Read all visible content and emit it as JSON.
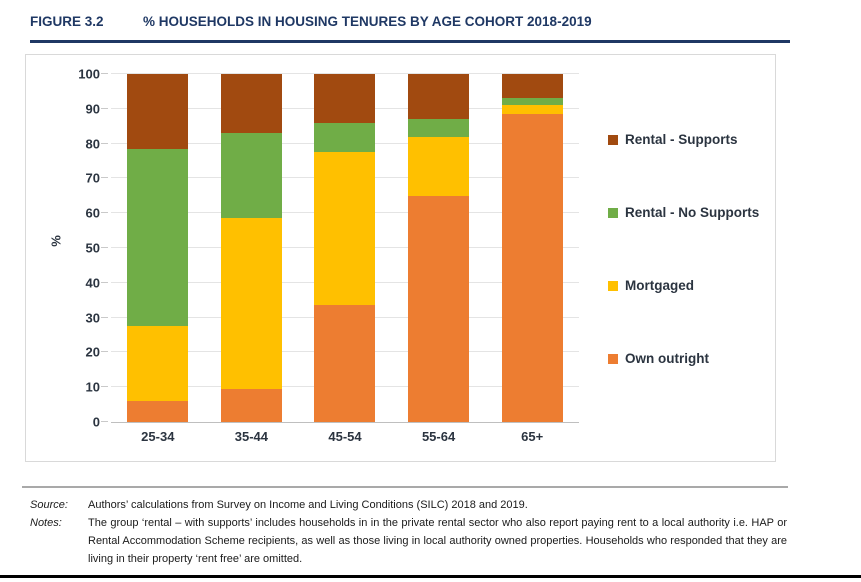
{
  "header": {
    "figure_label": "FIGURE 3.2",
    "title": "% HOUSEHOLDS IN HOUSING TENURES BY AGE COHORT 2018-2019"
  },
  "chart_data": {
    "type": "bar",
    "stacked": true,
    "title": "% Households in housing tenures by age cohort 2018-2019",
    "categories": [
      "25-34",
      "35-44",
      "45-54",
      "55-64",
      "65+"
    ],
    "series": [
      {
        "name": "Own outright",
        "color": "#ED7D31",
        "values": [
          6,
          9.5,
          33.5,
          65,
          88.5
        ]
      },
      {
        "name": "Mortgaged",
        "color": "#FFC000",
        "values": [
          21.5,
          49,
          44,
          17,
          2.5
        ]
      },
      {
        "name": "Rental - No Supports",
        "color": "#70AD47",
        "values": [
          51,
          24.5,
          8.5,
          5,
          2
        ]
      },
      {
        "name": "Rental - Supports",
        "color": "#A14A10",
        "values": [
          21.5,
          17,
          14,
          13,
          7
        ]
      }
    ],
    "xlabel": "",
    "ylabel": "%",
    "ylim": [
      0,
      100
    ],
    "yticks": [
      0,
      10,
      20,
      30,
      40,
      50,
      60,
      70,
      80,
      90,
      100
    ],
    "grid": true,
    "legend_position": "right",
    "legend_order": [
      "Rental - Supports",
      "Rental - No Supports",
      "Mortgaged",
      "Own outright"
    ]
  },
  "footer": {
    "source_label": "Source:",
    "source_text": "Authors’ calculations from Survey on Income and Living Conditions (SILC) 2018 and 2019.",
    "notes_label": "Notes:",
    "notes_text": "The group ‘rental – with supports’ includes households in in the private rental sector who also report paying rent to a local authority i.e. HAP or Rental Accommodation Scheme recipients, as well as those living in local authority owned properties. Households who responded that they are living in their property ‘rent free’ are omitted."
  },
  "colors": {
    "title_navy": "#1F3864",
    "axis_text": "#2B3440",
    "gridline": "#E4E4E4",
    "chart_border": "#D9D9D9",
    "divider_gray": "#A9A9A9",
    "bottom_rule": "#000000"
  }
}
